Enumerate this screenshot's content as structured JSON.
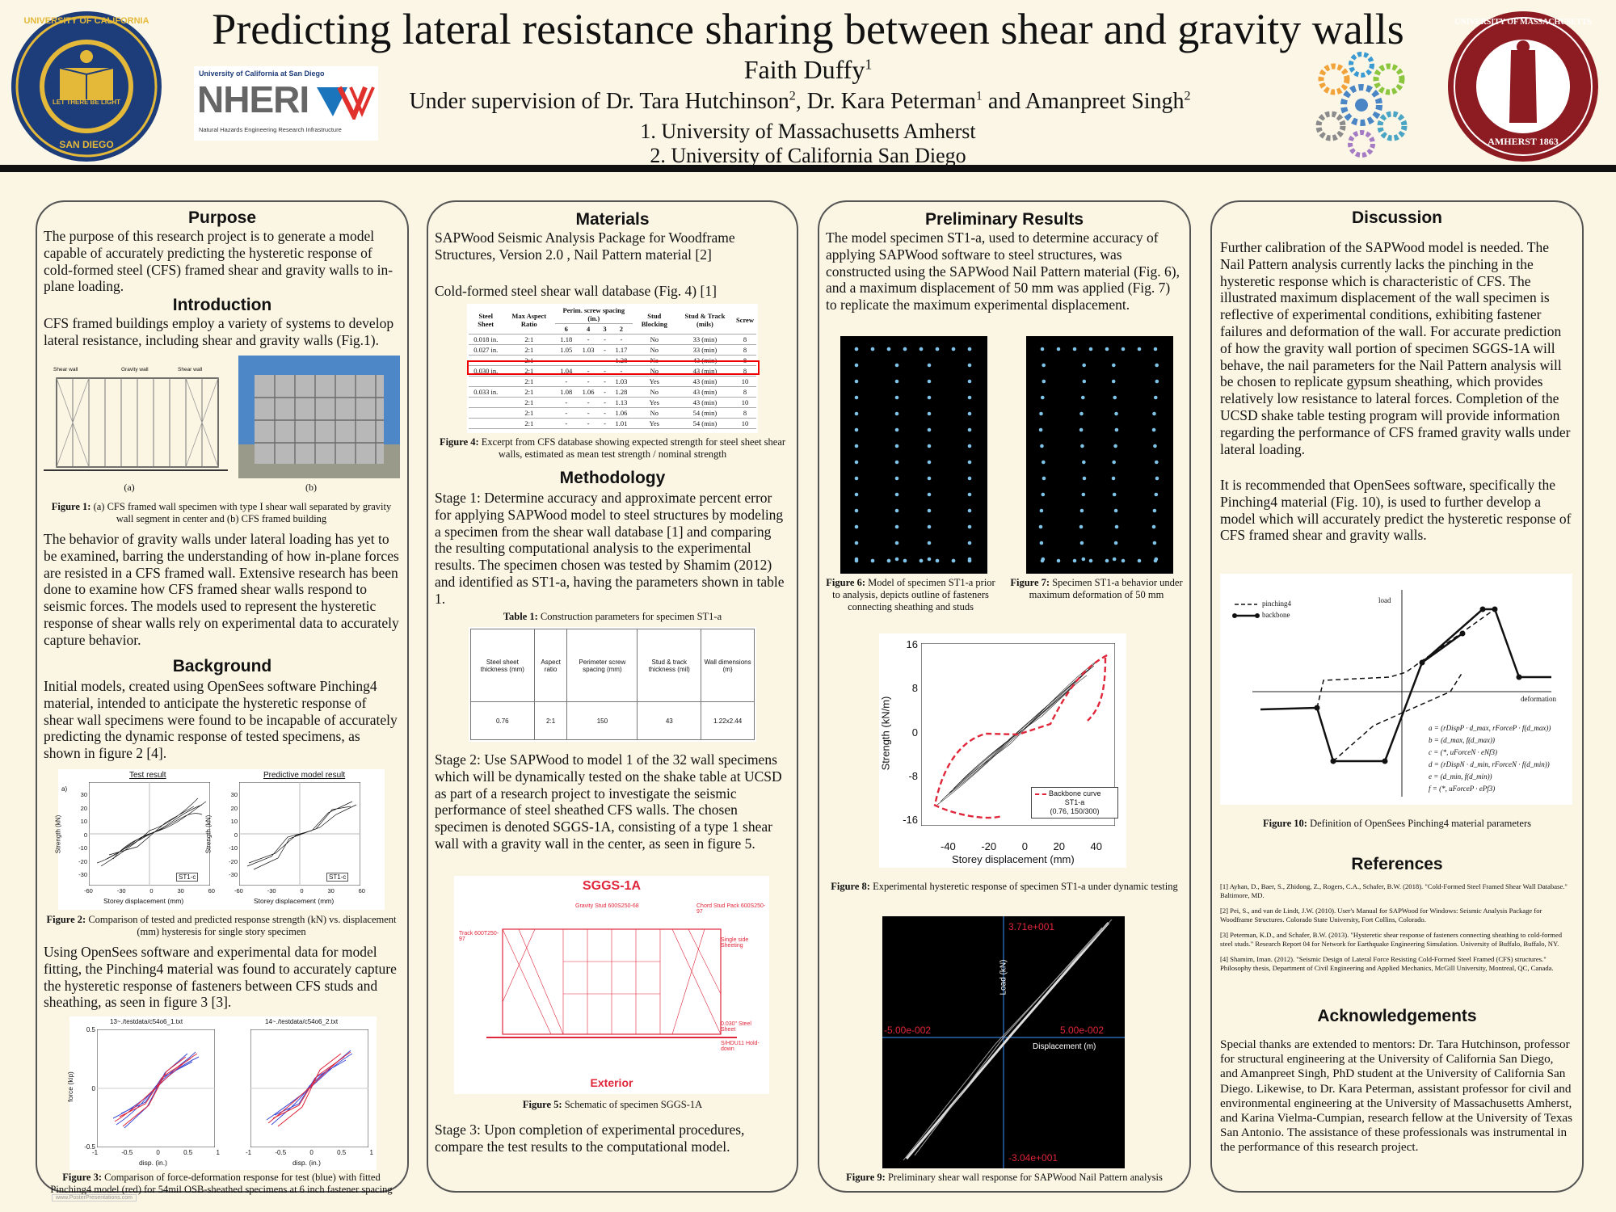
{
  "header": {
    "title": "Predicting lateral resistance sharing between shear and gravity walls",
    "author_name": "Faith Duffy",
    "author_sup": "1",
    "supervision": {
      "prefix": "Under supervision of Dr. Tara Hutchinson",
      "sup1": "2",
      "mid": ", Dr. Kara Peterman",
      "sup2": "1",
      "mid2": " and Amanpreet Singh",
      "sup3": "2"
    },
    "aff1": "1. University of Massachusetts Amherst",
    "aff2": "2. University of California San Diego",
    "logo_ucsd": "University of California at San Diego",
    "logo_nheri": "NHERI",
    "logo_nheri_sub": "Natural Hazards Engineering Research Infrastructure",
    "seal_left_top": "UNIVERSITY OF CALIFORNIA",
    "seal_left_bottom": "SAN DIEGO",
    "seal_left_motto": "LET THERE BE LIGHT",
    "seal_right_top": "UNIVERSITY OF MASSACHUSETTS",
    "seal_right_bottom": "AMHERST 1863"
  },
  "col1": {
    "purpose_h": "Purpose",
    "purpose": "The purpose of this research project is to generate a model capable of accurately predicting the hysteretic response of cold-formed steel (CFS) framed shear and gravity walls to in-plane loading.",
    "intro_h": "Introduction",
    "intro": "CFS framed buildings employ a variety of systems to develop lateral resistance, including shear and gravity walls (Fig.1).",
    "fig1_labels": [
      "Shear wall",
      "Gravity wall",
      "Shear wall"
    ],
    "fig1_a": "(a)",
    "fig1_b": "(b)",
    "fig1_cap_b": "Figure 1:",
    "fig1_cap": " (a) CFS framed wall specimen with type I shear wall separated by gravity wall segment in center and (b) CFS framed building",
    "behavior": "The behavior of gravity walls under lateral loading has yet to be examined, barring the understanding of how in-plane forces are resisted in a CFS framed wall. Extensive research has been done to examine how CFS framed shear walls respond to seismic forces. The models used to represent the hysteretic response of shear walls rely on experimental data to accurately capture behavior.",
    "bg_h": "Background",
    "bg": "Initial models, created using OpenSees software Pinching4 material, intended to anticipate the hysteretic response of shear wall specimens were found to be incapable of accurately predicting the dynamic response of tested specimens, as shown in figure 2 [4].",
    "fig2_t1": "Test result",
    "fig2_t2": "Predictive model result",
    "fig2_a": "a)",
    "fig2_legend": "ST1-c",
    "fig2_xlabel": "Storey displacement (mm)",
    "fig2_ylabel": "Strength (kN)",
    "fig2_yticks": [
      "30",
      "20",
      "10",
      "0",
      "-10",
      "-20",
      "-30"
    ],
    "fig2_xticks": [
      "-60",
      "-30",
      "0",
      "30",
      "60"
    ],
    "fig2_cap_b": "Figure 2:",
    "fig2_cap": " Comparison of tested and predicted response strength (kN) vs. displacement (mm) hysteresis for single story specimen",
    "opensees": "Using OpenSees software and experimental data for model fitting, the Pinching4 material was found to accurately capture the hysteretic response of fasteners between CFS studs and sheathing, as seen in figure 3 [3].",
    "fig3_t1": "13~./testdata/c54o6_1.txt",
    "fig3_t2": "14~./testdata/c54o6_2.txt",
    "fig3_xlabel": "disp. (in.)",
    "fig3_ylabel": "force (kip)",
    "fig3_yticks": [
      "0.5",
      "0",
      "-0.5"
    ],
    "fig3_xticks": [
      "-1",
      "-0.5",
      "0",
      "0.5",
      "1"
    ],
    "fig3_cap_b": "Figure 3:",
    "fig3_cap": " Comparison of force-deformation response for test (blue) with fitted Pinching4 model (red) for 54mil OSB-sheathed specimens at 6 inch fastener spacing",
    "footer_url": "www.PosterPresentations.com"
  },
  "col2": {
    "materials_h": "Materials",
    "materials": "SAPWood Seismic Analysis Package for Woodframe Structures, Version 2.0 , Nail Pattern material [2]",
    "db_line": "Cold-formed steel shear wall database (Fig. 4) [1]",
    "db_head": [
      "Steel Sheet",
      "Max Aspect Ratio",
      "Perim. screw spacing (in.)",
      "Stud Blocking",
      "Stud & Track (mils)",
      "Screw"
    ],
    "db_sub": [
      "6",
      "4",
      "3",
      "2"
    ],
    "db_rows": [
      [
        "0.018 in.",
        "2:1",
        "1.18",
        "-",
        "-",
        "-",
        "No",
        "33 (min)",
        "8"
      ],
      [
        "0.027 in.",
        "2:1",
        "1.05",
        "1.03",
        "-",
        "1.17",
        "No",
        "33 (min)",
        "8"
      ],
      [
        "",
        "2:1",
        "-",
        "-",
        "-",
        "1.28",
        "No",
        "43 (min)",
        "8"
      ],
      [
        "0.030 in.",
        "2:1",
        "1.04",
        "-",
        "-",
        "-",
        "No",
        "43 (min)",
        "8"
      ],
      [
        "",
        "2:1",
        "-",
        "-",
        "-",
        "1.03",
        "Yes",
        "43 (min)",
        "10"
      ],
      [
        "0.033 in.",
        "2:1",
        "1.08",
        "1.06",
        "-",
        "1.28",
        "No",
        "43 (min)",
        "8"
      ],
      [
        "",
        "2:1",
        "-",
        "-",
        "-",
        "1.13",
        "Yes",
        "43 (min)",
        "10"
      ],
      [
        "",
        "2:1",
        "-",
        "-",
        "-",
        "1.06",
        "No",
        "54 (min)",
        "8"
      ],
      [
        "",
        "2:1",
        "-",
        "-",
        "-",
        "1.01",
        "Yes",
        "54 (min)",
        "10"
      ]
    ],
    "fig4_cap_b": "Figure 4:",
    "fig4_cap": " Excerpt from CFS database showing expected strength for steel sheet shear walls, estimated as mean test strength / nominal strength",
    "method_h": "Methodology",
    "stage1": "Stage 1: Determine accuracy and approximate percent error for applying SAPWood model to steel structures by modeling a specimen from the shear wall database [1] and comparing the resulting computational analysis to the experimental results. The specimen chosen was tested by Shamim (2012) and identified as ST1-a, having the parameters shown in table 1.",
    "table1_cap_b": "Table 1:",
    "table1_cap": " Construction parameters for specimen ST1-a",
    "table1_head": [
      "Steel sheet thickness (mm)",
      "Aspect ratio",
      "Perimeter screw spacing (mm)",
      "Stud & track thickness (mil)",
      "Wall dimensions (m)"
    ],
    "table1_row": [
      "0.76",
      "2:1",
      "150",
      "43",
      "1.22x2.44"
    ],
    "stage2": "Stage 2: Use SAPWood to model 1 of the 32 wall specimens which will be dynamically tested on the shake table at UCSD as part of a research project to investigate the seismic performance of steel sheathed CFS walls. The chosen specimen is denoted SGGS-1A, consisting of a type 1 shear wall with a gravity wall in the center, as seen in figure 5.",
    "fig5_title": "SGGS-1A",
    "fig5_exterior": "Exterior",
    "fig5_notes": [
      "Gravity Stud 600S250-68",
      "Chord Stud Pack 600S250-97",
      "Track 600T250-97",
      "Single side Sheeting",
      "0.030\" Steel Sheet",
      "S/HDU11 Hold-down"
    ],
    "fig5_cap_b": "Figure 5:",
    "fig5_cap": " Schematic of specimen SGGS-1A",
    "stage3": "Stage 3: Upon completion of experimental procedures, compare the test results to the computational model."
  },
  "col3": {
    "results_h": "Preliminary Results",
    "results": "The model specimen ST1-a, used to determine accuracy of applying SAPWood software to steel structures, was constructed using the SAPWood Nail Pattern material (Fig. 6), and a maximum displacement of 50 mm was applied (Fig. 7) to replicate the maximum experimental displacement.",
    "fig6_cap_b": "Figure 6:",
    "fig6_cap": " Model of specimen ST1-a prior to analysis, depicts outline of fasteners connecting sheathing and studs",
    "fig7_cap_b": "Figure 7:",
    "fig7_cap": " Specimen ST1-a behavior under maximum deformation of 50 mm",
    "fig8_ylabel": "Strength (kN/m)",
    "fig8_xlabel": "Storey displacement (mm)",
    "fig8_yticks": [
      "16",
      "8",
      "0",
      "-8",
      "-16"
    ],
    "fig8_xticks": [
      "-40",
      "-20",
      "0",
      "20",
      "40"
    ],
    "fig8_legend1": "Backbone curve",
    "fig8_legend2": "ST1-a",
    "fig8_legend3": "(0.76, 150/300)",
    "fig8_cap_b": "Figure 8:",
    "fig8_cap": " Experimental hysteretic response of specimen ST1-a under dynamic testing",
    "fig9_top": "3.71e+001",
    "fig9_bottom": "-3.04e+001",
    "fig9_left": "-5.00e-002",
    "fig9_right": "5.00e-002",
    "fig9_ylabel": "Load (kN)",
    "fig9_xlabel": "Displacement (m)",
    "fig9_cap_b": "Figure 9:",
    "fig9_cap": " Preliminary shear wall response for SAPWood Nail Pattern analysis"
  },
  "col4": {
    "discussion_h": "Discussion",
    "disc1": "Further calibration of the SAPWood model is needed. The Nail Pattern analysis currently lacks the pinching in the hysteretic response which is characteristic of CFS. The illustrated maximum displacement of the wall specimen is reflective of experimental conditions, exhibiting fastener failures and deformation of the wall. For accurate prediction of how the gravity wall portion of specimen SGGS-1A will behave, the nail parameters for the Nail Pattern analysis will be chosen to replicate gypsum sheathing, which provides relatively low resistance to lateral forces. Completion of the UCSD shake table testing program will provide information regarding the performance of CFS framed gravity walls under lateral loading.",
    "disc2": "It is recommended that OpenSees software, specifically the Pinching4 material (Fig. 10), is used to further develop a model which will accurately predict the hysteretic response of CFS framed shear and gravity walls.",
    "fig10_legend1": "pinching4",
    "fig10_legend2": "backbone",
    "fig10_load": "load",
    "fig10_deform": "deformation",
    "fig10_eqs": [
      "a = (rDispP · d_max, rForceP · f(d_max))",
      "b = (d_max, f(d_max))",
      "c = (*, uForceN · eNf3)",
      "d = (rDispN · d_min, rForceN · f(d_min))",
      "e = (d_min, f(d_min))",
      "f = (*, uForceP · ePf3)"
    ],
    "fig10_cap_b": "Figure 10:",
    "fig10_cap": " Definition of OpenSees Pinching4 material parameters",
    "refs_h": "References",
    "refs": [
      "[1] Ayhan, D., Baer, S., Zhidong, Z., Rogers, C.A., Schafer, B.W. (2018). \"Cold-Formed Steel Framed Shear Wall Database.\" Baltimore, MD.",
      "[2] Pei, S., and van de Lindt, J.W. (2010). User's Manual for SAPWood for Windows: Seismic Analysis Package for Woodframe Structures. Colorado State University, Fort Collins, Colorado.",
      "[3] Peterman, K.D., and Schafer, B.W. (2013). \"Hysteretic shear response of fasteners connecting sheathing to cold-formed steel studs.\" Research Report 04 for Network for Earthquake Engineering Simulation. University of Buffalo, Buffalo, NY.",
      "[4] Shamim, Iman. (2012). \"Seismic Design of Lateral Force Resisting Cold-Formed Steel Framed (CFS) structures.\" Philosophy thesis, Department of Civil Engineering and Applied Mechanics, McGill University, Montreal, QC, Canada."
    ],
    "ack_h": "Acknowledgements",
    "ack": "Special thanks are extended to mentors: Dr. Tara Hutchinson, professor for structural engineering at the University of California San Diego, and Amanpreet Singh, PhD student at the University of California San Diego. Likewise, to Dr. Kara Peterman, assistant professor for civil and environmental engineering at the University of Massachusetts Amherst, and Karina Vielma-Cumpian, research fellow at the University of Texas San Antonio. The assistance of these professionals was instrumental in the performance of this research project."
  }
}
